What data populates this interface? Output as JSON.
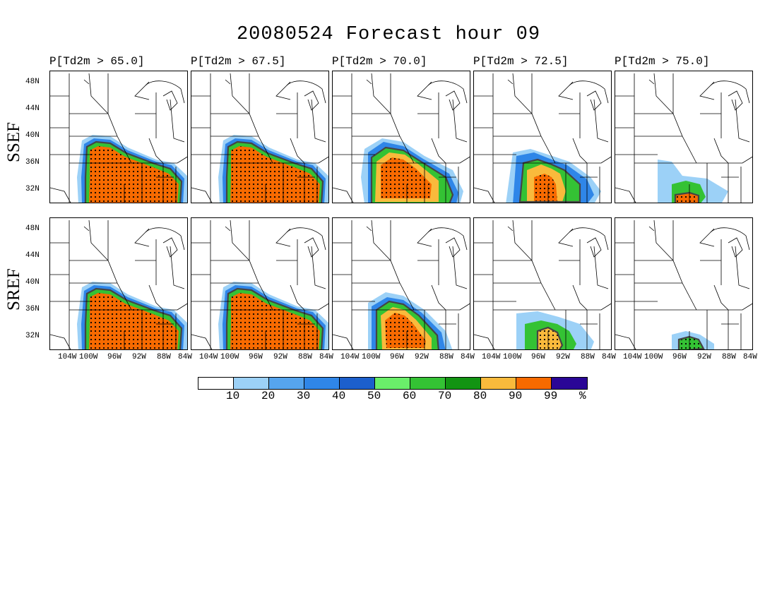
{
  "title": "20080524 Forecast hour 09",
  "rows": [
    "SSEF",
    "SREF"
  ],
  "columns": [
    "P[Td2m > 65.0]",
    "P[Td2m > 67.5]",
    "P[Td2m > 70.0]",
    "P[Td2m > 72.5]",
    "P[Td2m > 75.0]"
  ],
  "lat_labels": [
    "48N",
    "44N",
    "40N",
    "36N",
    "32N"
  ],
  "lon_labels": [
    "104W",
    "100W",
    "96W",
    "92W",
    "88W",
    "84W"
  ],
  "colorbar": {
    "colors": [
      "#ffffff",
      "#9cd1f7",
      "#56a5ee",
      "#2f86e8",
      "#1c5fcc",
      "#6aef6a",
      "#34c234",
      "#129412",
      "#f9ba3c",
      "#f76a00",
      "#2a0696"
    ],
    "labels": [
      "10",
      "20",
      "30",
      "40",
      "50",
      "60",
      "70",
      "80",
      "90",
      "99",
      "%"
    ]
  },
  "probability_cores": {
    "SSEF": [
      "full-south",
      "full-south",
      "central-arkansas-south",
      "louisiana-arkansas",
      "louisiana-strip"
    ],
    "SREF": [
      "full-south",
      "full-south",
      "central-southwest",
      "louisiana-south",
      "louisiana-small"
    ]
  }
}
